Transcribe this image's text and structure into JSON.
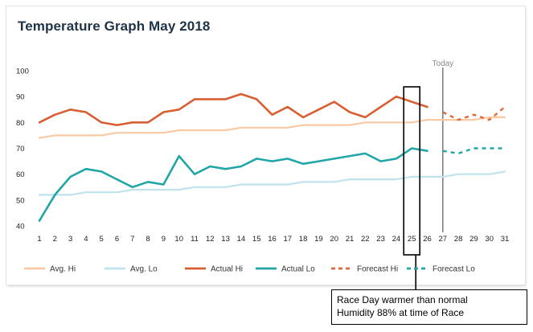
{
  "chart_data": {
    "type": "line",
    "title": "Temperature Graph May 2018",
    "x": [
      1,
      2,
      3,
      4,
      5,
      6,
      7,
      8,
      9,
      10,
      11,
      12,
      13,
      14,
      15,
      16,
      17,
      18,
      19,
      20,
      21,
      22,
      23,
      24,
      25,
      26,
      27,
      28,
      29,
      30,
      31
    ],
    "ylim": [
      40,
      100
    ],
    "yticks": [
      40,
      50,
      60,
      70,
      80,
      90,
      100
    ],
    "grid": false,
    "legend_position": "bottom",
    "today_marker": {
      "x": 27,
      "label": "Today"
    },
    "series": [
      {
        "name": "Avg. Hi",
        "color": "#f9c9a3",
        "style": "solid",
        "x": [
          1,
          2,
          3,
          4,
          5,
          6,
          7,
          8,
          9,
          10,
          11,
          12,
          13,
          14,
          15,
          16,
          17,
          18,
          19,
          20,
          21,
          22,
          23,
          24,
          25,
          26,
          27,
          28,
          29,
          30,
          31
        ],
        "values": [
          74,
          75,
          75,
          75,
          75,
          76,
          76,
          76,
          76,
          77,
          77,
          77,
          77,
          78,
          78,
          78,
          78,
          79,
          79,
          79,
          79,
          80,
          80,
          80,
          80,
          81,
          81,
          81,
          81,
          82,
          82
        ]
      },
      {
        "name": "Avg. Lo",
        "color": "#bfe2ec",
        "style": "solid",
        "x": [
          1,
          2,
          3,
          4,
          5,
          6,
          7,
          8,
          9,
          10,
          11,
          12,
          13,
          14,
          15,
          16,
          17,
          18,
          19,
          20,
          21,
          22,
          23,
          24,
          25,
          26,
          27,
          28,
          29,
          30,
          31
        ],
        "values": [
          52,
          52,
          52,
          53,
          53,
          53,
          54,
          54,
          54,
          54,
          55,
          55,
          55,
          56,
          56,
          56,
          56,
          57,
          57,
          57,
          58,
          58,
          58,
          58,
          59,
          59,
          59,
          60,
          60,
          60,
          61
        ]
      },
      {
        "name": "Actual Hi",
        "color": "#d85f32",
        "style": "solid",
        "x": [
          1,
          2,
          3,
          4,
          5,
          6,
          7,
          8,
          9,
          10,
          11,
          12,
          13,
          14,
          15,
          16,
          17,
          18,
          19,
          20,
          21,
          22,
          23,
          24,
          25,
          26
        ],
        "values": [
          80,
          83,
          85,
          84,
          80,
          79,
          80,
          80,
          84,
          85,
          89,
          89,
          89,
          91,
          89,
          83,
          86,
          82,
          85,
          88,
          84,
          82,
          86,
          90,
          88,
          86
        ]
      },
      {
        "name": "Actual Lo",
        "color": "#21a6a8",
        "style": "solid",
        "x": [
          1,
          2,
          3,
          4,
          5,
          6,
          7,
          8,
          9,
          10,
          11,
          12,
          13,
          14,
          15,
          16,
          17,
          18,
          19,
          20,
          21,
          22,
          23,
          24,
          25,
          26
        ],
        "values": [
          42,
          52,
          59,
          62,
          61,
          58,
          55,
          57,
          56,
          67,
          60,
          63,
          62,
          63,
          66,
          65,
          66,
          64,
          65,
          66,
          67,
          68,
          65,
          66,
          70,
          69
        ]
      },
      {
        "name": "Forecast Hi",
        "color": "#e0683a",
        "style": "dashed",
        "x": [
          27,
          28,
          29,
          30,
          31
        ],
        "values": [
          84,
          81,
          83,
          81,
          86
        ]
      },
      {
        "name": "Forecast Lo",
        "color": "#21a6a8",
        "style": "dashed",
        "x": [
          27,
          28,
          29,
          30,
          31
        ],
        "values": [
          69,
          68,
          70,
          70,
          70
        ]
      }
    ],
    "highlight": {
      "x": 25
    }
  },
  "annotation": {
    "line1": "Race Day warmer than normal",
    "line2": "Humidity 88% at time of Race"
  }
}
